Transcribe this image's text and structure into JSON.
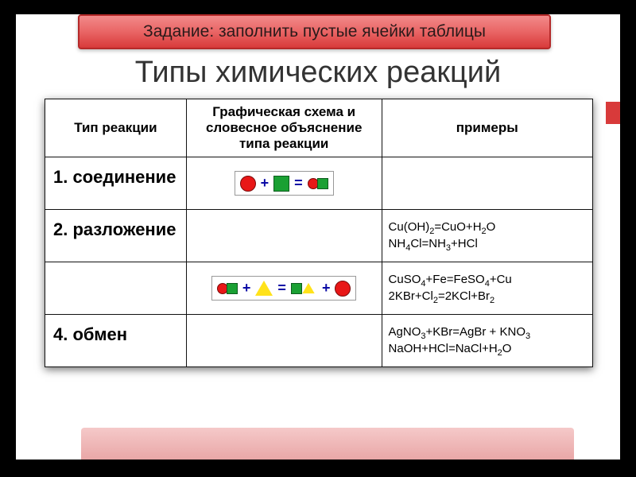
{
  "banner": {
    "text": "Задание: заполнить пустые ячейки таблицы"
  },
  "title": "Типы химических реакций",
  "headers": {
    "col1": "Тип реакции",
    "col2": "Графическая схема и словесное объяснение типа реакции",
    "col3": "примеры"
  },
  "rows": [
    {
      "type": "1. соединение",
      "schema": "diag1",
      "example": ""
    },
    {
      "type": "2. разложение",
      "schema": "",
      "example": "Cu(OH)<sub>2</sub>=CuO+H<sub>2</sub>O<br>NH<sub>4</sub>Cl=NH<sub>3</sub>+HCl"
    },
    {
      "type": "",
      "schema": "diag3",
      "example": "CuSO<sub>4</sub>+Fe=FeSO<sub>4</sub>+Cu<br>2KBr+Cl<sub>2</sub>=2KCl+Br<sub>2</sub>"
    },
    {
      "type": "4. обмен",
      "schema": "",
      "example": "AgNO<sub>3</sub>+KBr=AgBr + KNO<sub>3</sub><br>NaOH+HCl=NaCl+H<sub>2</sub>O"
    }
  ],
  "style": {
    "bg": "#000000",
    "stage_bg": "#ffffff",
    "accent": "#d83a3a",
    "shape_red": "#e81717",
    "shape_green": "#1aa033",
    "shape_yellow": "#ffe21a",
    "banner_gradient": [
      "#f28a8a",
      "#e96565",
      "#d83a3a"
    ],
    "title_fontsize": 38,
    "banner_fontsize": 21,
    "header_fontsize": 17,
    "type_fontsize": 22,
    "example_fontsize": 15
  }
}
